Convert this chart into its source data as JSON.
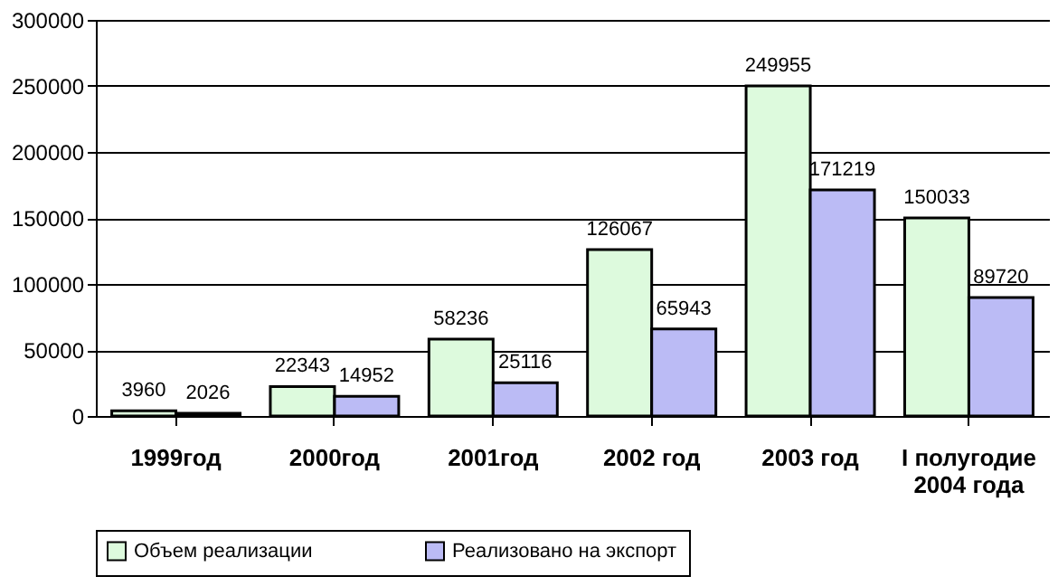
{
  "chart_data": {
    "type": "bar",
    "categories": [
      "1999год",
      "2000год",
      "2001год",
      "2002 год",
      "2003 год",
      "I полугодие\n2004 года"
    ],
    "series": [
      {
        "name": "Объем реализации",
        "color": "#ddfadd",
        "values": [
          3960,
          22343,
          58236,
          126067,
          249955,
          150033
        ]
      },
      {
        "name": "Реализовано на экспорт",
        "color": "#bbbbf5",
        "values": [
          2026,
          14952,
          25116,
          65943,
          171219,
          89720
        ]
      }
    ],
    "ylim": [
      0,
      300000
    ],
    "yticks": [
      0,
      50000,
      100000,
      150000,
      200000,
      250000,
      300000
    ],
    "grid": "y",
    "legend": "bottom",
    "data_labels": true
  }
}
